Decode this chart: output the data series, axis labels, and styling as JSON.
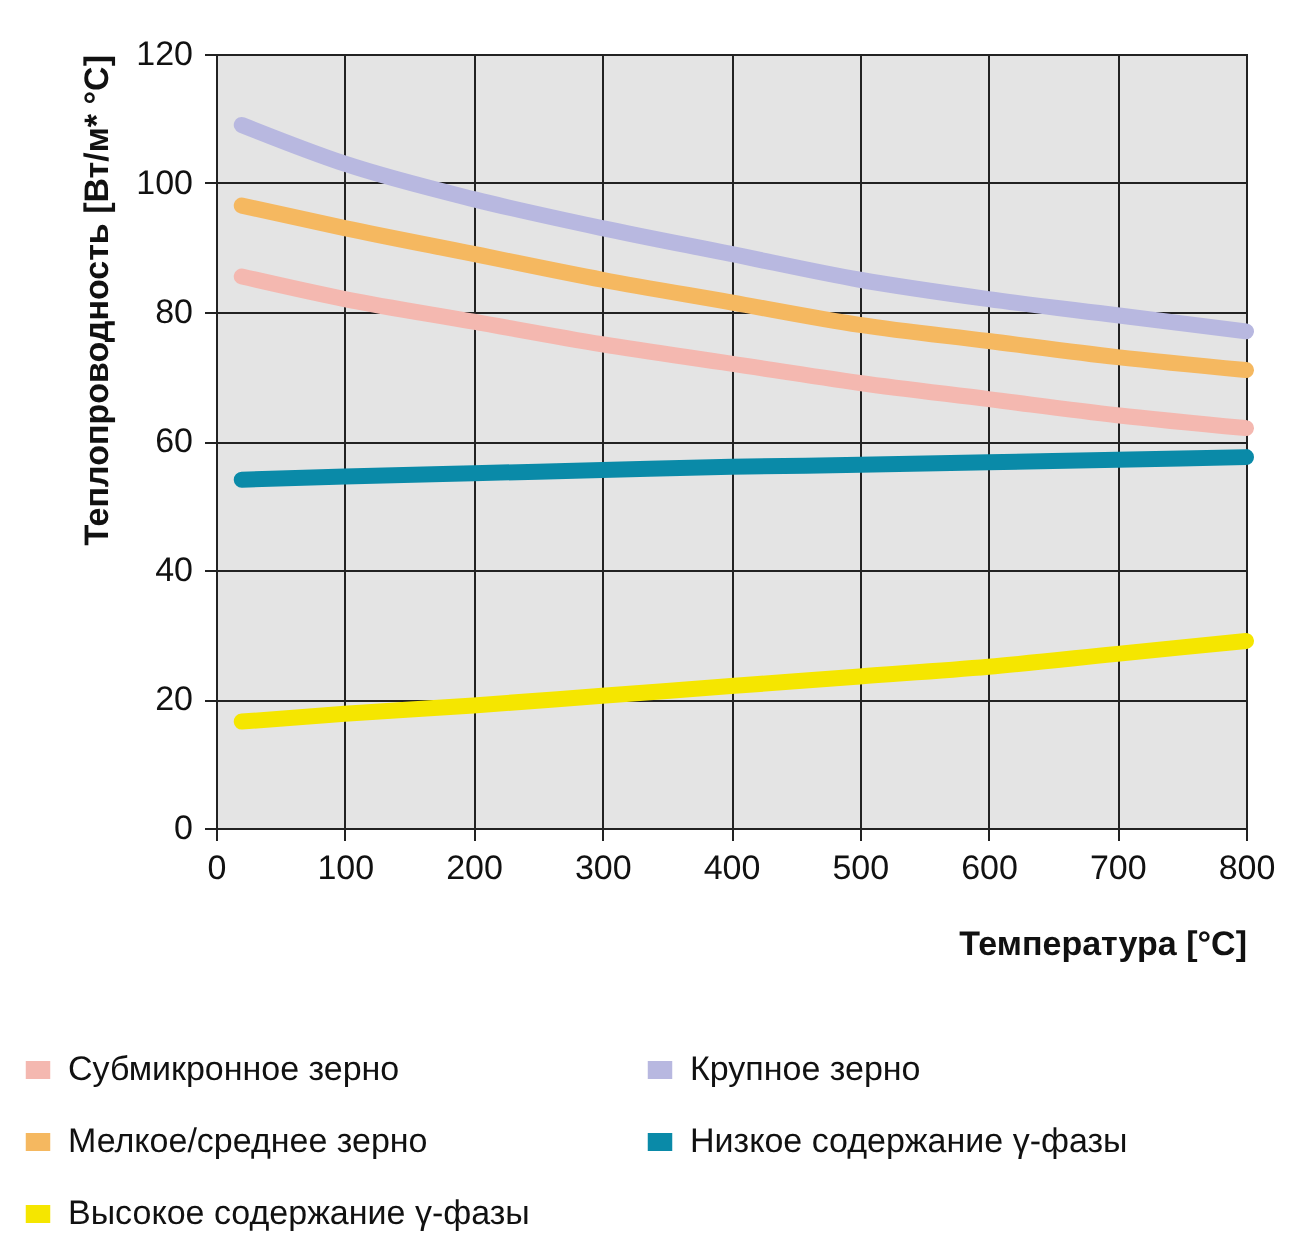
{
  "chart_data": {
    "type": "line",
    "xlabel": "Температура [°C]",
    "ylabel": "Теплопроводность [Вт/м* °C]",
    "x": [
      20,
      100,
      200,
      300,
      400,
      500,
      600,
      700,
      800
    ],
    "series": [
      {
        "name": "Субмикронное зерно",
        "color": "#f4b8b0",
        "values": [
          85.5,
          82,
          78.5,
          75,
          72,
          69,
          66.5,
          64,
          62
        ]
      },
      {
        "name": "Крупное зерно",
        "color": "#b8b8e0",
        "values": [
          109,
          103,
          97.5,
          93,
          89,
          85,
          82,
          79.5,
          77
        ]
      },
      {
        "name": "Мелкое/среднее зерно",
        "color": "#f5b860",
        "values": [
          96.5,
          93,
          89,
          85,
          81.5,
          78,
          75.5,
          73,
          71
        ]
      },
      {
        "name": "Низкое содержание γ-фазы",
        "color": "#0a8aa8",
        "values": [
          54,
          54.5,
          55,
          55.5,
          56,
          56.3,
          56.7,
          57.1,
          57.5
        ]
      },
      {
        "name": "Высокое содержание γ-фазы",
        "color": "#f5e600",
        "values": [
          16.5,
          17.7,
          19,
          20.5,
          22,
          23.5,
          25,
          27,
          29
        ]
      }
    ],
    "xlim": [
      0,
      800
    ],
    "xticks": [
      0,
      100,
      200,
      300,
      400,
      500,
      600,
      700,
      800
    ],
    "ylim": [
      0,
      120
    ],
    "yticks": [
      0,
      20,
      40,
      60,
      80,
      100,
      120
    ],
    "grid": true,
    "legend": "bottom",
    "marker": "none",
    "line_style": "solid"
  }
}
